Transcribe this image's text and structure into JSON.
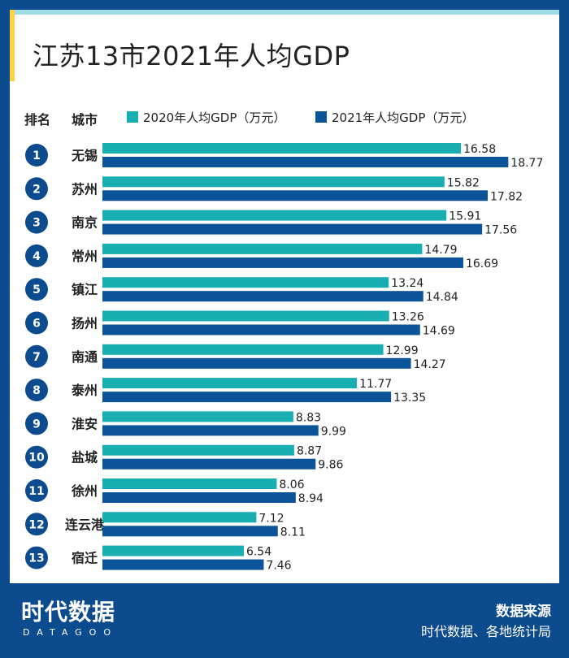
{
  "title": "江苏13市2021年人均GDP",
  "header": {
    "rank_label": "排名",
    "city_label": "城市"
  },
  "colors": {
    "series_2020": "#19aeb2",
    "series_2021": "#0c5499",
    "frame": "#0d4b8f",
    "badge": "#0d4b8f"
  },
  "chart_data": {
    "type": "bar",
    "orientation": "horizontal",
    "title": "江苏13市2021年人均GDP",
    "xlabel": "",
    "ylabel": "",
    "xlim": [
      0,
      20
    ],
    "ranks": [
      "1",
      "2",
      "3",
      "4",
      "5",
      "6",
      "7",
      "8",
      "9",
      "10",
      "11",
      "12",
      "13"
    ],
    "categories": [
      "无锡",
      "苏州",
      "南京",
      "常州",
      "镇江",
      "扬州",
      "南通",
      "泰州",
      "淮安",
      "盐城",
      "徐州",
      "连云港",
      "宿迁"
    ],
    "series": [
      {
        "name": "2020年人均GDP（万元）",
        "values": [
          16.58,
          15.82,
          15.91,
          14.79,
          13.24,
          13.26,
          12.99,
          11.77,
          8.83,
          8.87,
          8.06,
          7.12,
          6.54
        ],
        "labels": [
          "16.58",
          "15.82",
          "15.91",
          "14.79",
          "13.24",
          "13.26",
          "12.99",
          "11.77",
          "8.83",
          "8.87",
          "8.06",
          "7.12",
          "6.54"
        ]
      },
      {
        "name": "2021年人均GDP（万元）",
        "values": [
          18.77,
          17.82,
          17.56,
          16.69,
          14.84,
          14.69,
          14.27,
          13.35,
          9.99,
          9.86,
          8.94,
          8.11,
          7.46
        ],
        "labels": [
          "18.77",
          "17.82",
          "17.56",
          "16.69",
          "14.84",
          "14.69",
          "14.27",
          "13.35",
          "9.99",
          "9.86",
          "8.94",
          "8.11",
          "7.46"
        ]
      }
    ],
    "grid": false,
    "legend": "top"
  },
  "footer": {
    "logo_text": "时代数据",
    "logo_sub": "DATAGOO",
    "source_label": "数据来源",
    "source_text": "时代数据、各地统计局"
  }
}
